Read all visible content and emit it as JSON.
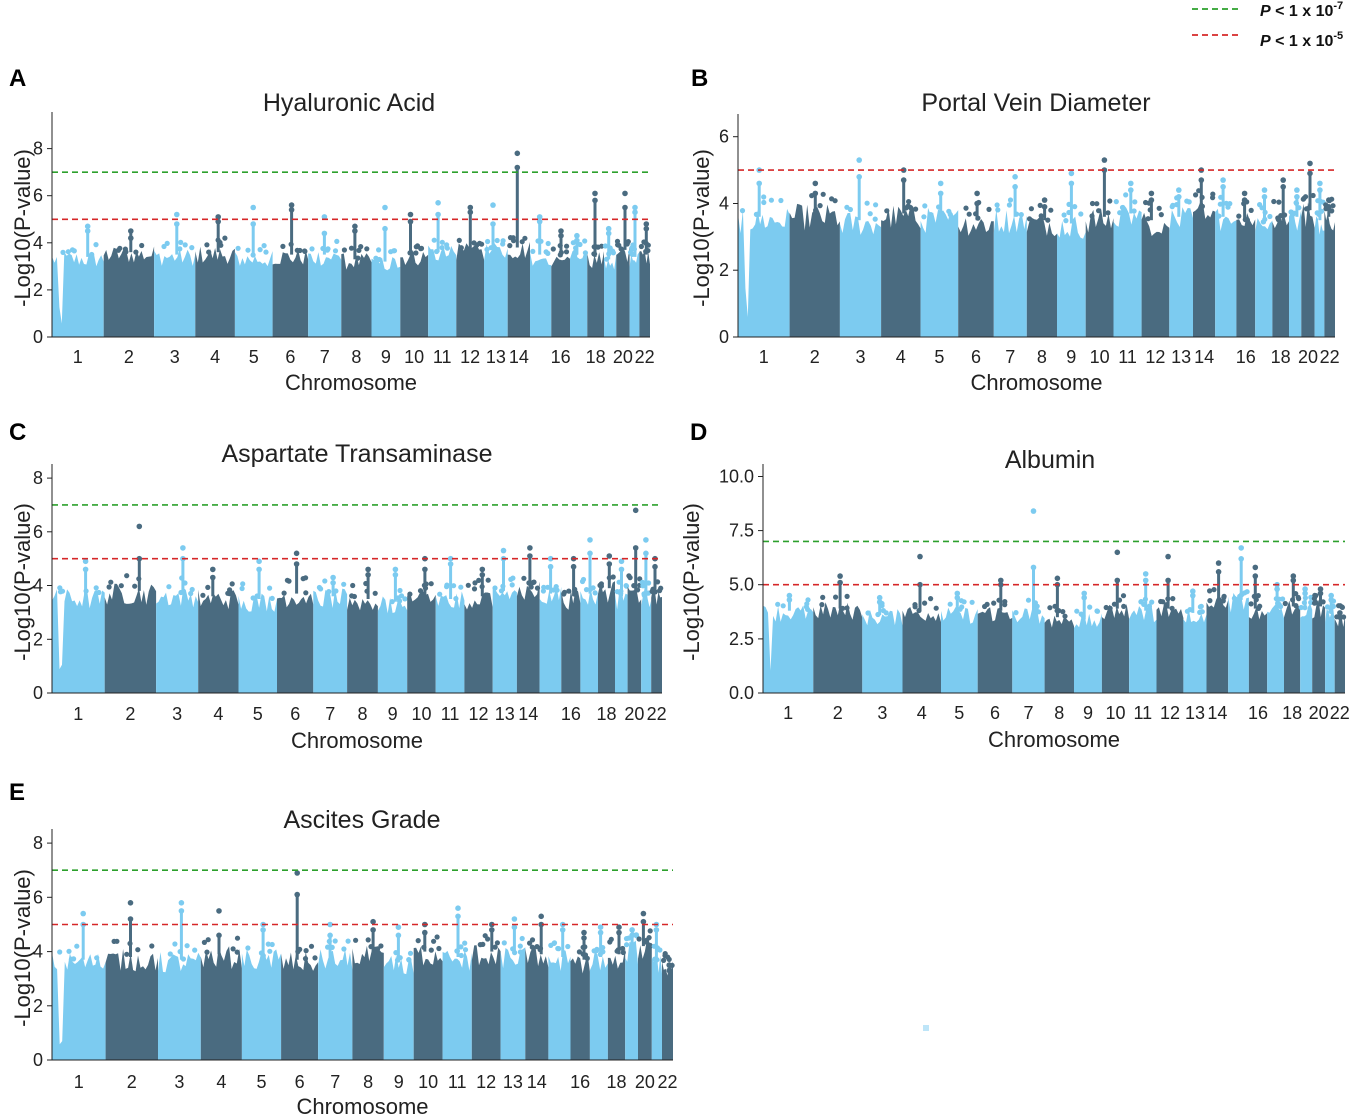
{
  "legend": {
    "entries": [
      {
        "label_prefix": "P",
        "label_text": " < 1 x 10",
        "exponent": "-7",
        "color": "#2ca02c",
        "threshold": 7
      },
      {
        "label_prefix": "P",
        "label_text": " < 1 x 10",
        "exponent": "-5",
        "color": "#d62728",
        "threshold": 5
      }
    ]
  },
  "colors": {
    "light": "#7ccbf0",
    "dark": "#4a6b80"
  },
  "chart_data": [
    {
      "panel": "A",
      "type": "scatter",
      "title": "Hyaluronic Acid",
      "xlabel": "Chromosome",
      "ylabel": "-Log10(P-value)",
      "ylim": [
        0,
        9.3
      ],
      "yticks": [
        "0",
        "2",
        "4",
        "6",
        "8"
      ],
      "ytick_values": [
        0,
        2,
        4,
        6,
        8
      ],
      "thresholds": [
        7,
        5
      ],
      "chromosomes": [
        "1",
        "2",
        "3",
        "4",
        "5",
        "6",
        "7",
        "8",
        "9",
        "10",
        "11",
        "12",
        "13",
        "14",
        "15",
        "16",
        "17",
        "18",
        "19",
        "20",
        "21",
        "22"
      ],
      "xtick_labels": [
        "1",
        "2",
        "3",
        "4",
        "5",
        "6",
        "7",
        "8",
        "9",
        "10",
        "11",
        "12",
        "13",
        "14",
        "",
        "16",
        "",
        "18",
        "",
        "20",
        "",
        "22"
      ],
      "baseline": [
        3.4,
        3.6,
        3.5,
        3.6,
        3.4,
        3.5,
        3.5,
        3.3,
        3.2,
        3.5,
        3.6,
        3.7,
        3.7,
        3.8,
        3.5,
        3.4,
        3.5,
        3.4,
        3.3,
        3.7,
        3.4,
        3.5
      ],
      "peaks": [
        [
          4.7,
          4.5
        ],
        [
          4.2,
          4.5
        ],
        [
          5.2,
          4.8
        ],
        [
          5.1,
          4.9
        ],
        [
          5.5,
          4.8
        ],
        [
          5.6,
          5.4
        ],
        [
          5.1,
          4.4
        ],
        [
          4.7,
          4.5
        ],
        [
          5.5,
          4.6
        ],
        [
          5.2,
          4.9
        ],
        [
          5.7,
          5.2
        ],
        [
          5.5,
          5.3
        ],
        [
          5.6,
          4.8
        ],
        [
          7.8,
          7.2
        ],
        [
          5.1,
          4.9
        ],
        [
          4.5,
          4.3
        ],
        [
          4.3,
          4.1
        ],
        [
          6.1,
          5.8
        ],
        [
          4.6,
          4.4
        ],
        [
          6.1,
          5.5
        ],
        [
          5.5,
          5.3
        ],
        [
          4.8,
          4.6
        ]
      ]
    },
    {
      "panel": "B",
      "type": "scatter",
      "title": "Portal Vein Diameter",
      "xlabel": "Chromosome",
      "ylabel": "-Log10(P-value)",
      "ylim": [
        0,
        6.5
      ],
      "yticks": [
        "0",
        "2",
        "4",
        "6"
      ],
      "ytick_values": [
        0,
        2,
        4,
        6
      ],
      "thresholds": [
        5
      ],
      "chromosomes": [
        "1",
        "2",
        "3",
        "4",
        "5",
        "6",
        "7",
        "8",
        "9",
        "10",
        "11",
        "12",
        "13",
        "14",
        "15",
        "16",
        "17",
        "18",
        "19",
        "20",
        "21",
        "22"
      ],
      "xtick_labels": [
        "1",
        "2",
        "3",
        "4",
        "5",
        "6",
        "7",
        "8",
        "9",
        "10",
        "11",
        "12",
        "13",
        "14",
        "",
        "16",
        "",
        "18",
        "",
        "20",
        "",
        "22"
      ],
      "baseline": [
        3.6,
        3.7,
        3.5,
        3.7,
        3.6,
        3.5,
        3.6,
        3.5,
        3.4,
        3.6,
        3.7,
        3.5,
        3.6,
        3.8,
        3.6,
        3.5,
        3.4,
        3.5,
        3.6,
        3.8,
        3.5,
        3.6
      ],
      "peaks": [
        [
          5.0,
          4.6
        ],
        [
          4.6,
          4.3
        ],
        [
          5.3,
          4.8
        ],
        [
          5.0,
          4.7
        ],
        [
          4.6,
          4.3
        ],
        [
          4.3,
          4.0
        ],
        [
          4.8,
          4.5
        ],
        [
          4.1,
          3.9
        ],
        [
          4.9,
          4.6
        ],
        [
          5.3,
          5.0
        ],
        [
          4.6,
          4.4
        ],
        [
          4.3,
          4.1
        ],
        [
          4.4,
          4.2
        ],
        [
          5.0,
          4.7
        ],
        [
          4.7,
          4.5
        ],
        [
          4.3,
          4.1
        ],
        [
          4.4,
          4.2
        ],
        [
          4.7,
          4.5
        ],
        [
          4.4,
          4.2
        ],
        [
          5.2,
          4.9
        ],
        [
          4.6,
          4.4
        ],
        [
          4.1,
          3.9
        ]
      ]
    },
    {
      "panel": "C",
      "type": "scatter",
      "title": "Aspartate Transaminase",
      "xlabel": "Chromosome",
      "ylabel": "-Log10(P-value)",
      "ylim": [
        0,
        8.3
      ],
      "yticks": [
        "0",
        "2",
        "4",
        "6",
        "8"
      ],
      "ytick_values": [
        0,
        2,
        4,
        6,
        8
      ],
      "thresholds": [
        7,
        5
      ],
      "chromosomes": [
        "1",
        "2",
        "3",
        "4",
        "5",
        "6",
        "7",
        "8",
        "9",
        "10",
        "11",
        "12",
        "13",
        "14",
        "15",
        "16",
        "17",
        "18",
        "19",
        "20",
        "21",
        "22"
      ],
      "xtick_labels": [
        "1",
        "2",
        "3",
        "4",
        "5",
        "6",
        "7",
        "8",
        "9",
        "10",
        "11",
        "12",
        "13",
        "14",
        "",
        "16",
        "",
        "18",
        "",
        "20",
        "",
        "22"
      ],
      "baseline": [
        3.6,
        3.8,
        3.7,
        3.6,
        3.5,
        3.7,
        3.6,
        3.5,
        3.4,
        3.6,
        3.5,
        3.6,
        3.8,
        3.9,
        3.7,
        3.6,
        3.7,
        3.9,
        3.6,
        3.8,
        3.6,
        3.7
      ],
      "peaks": [
        [
          4.9,
          4.6
        ],
        [
          6.2,
          5.0
        ],
        [
          5.4,
          5.0
        ],
        [
          4.6,
          4.3
        ],
        [
          4.9,
          4.6
        ],
        [
          5.2,
          4.8
        ],
        [
          4.3,
          4.1
        ],
        [
          4.6,
          4.4
        ],
        [
          4.6,
          4.4
        ],
        [
          5.0,
          4.6
        ],
        [
          5.0,
          4.8
        ],
        [
          4.6,
          4.4
        ],
        [
          5.3,
          5.0
        ],
        [
          5.4,
          5.1
        ],
        [
          5.0,
          4.7
        ],
        [
          5.0,
          4.7
        ],
        [
          5.7,
          5.2
        ],
        [
          5.1,
          4.8
        ],
        [
          4.9,
          4.6
        ],
        [
          6.8,
          5.4
        ],
        [
          5.7,
          5.2
        ],
        [
          5.0,
          4.7
        ]
      ]
    },
    {
      "panel": "D",
      "type": "scatter",
      "title": "Albumin",
      "xlabel": "Chromosome",
      "ylabel": "-Log10(P-value)",
      "ylim": [
        0,
        10.3
      ],
      "yticks": [
        "0.0",
        "2.5",
        "5.0",
        "7.5",
        "10.0"
      ],
      "ytick_values": [
        0,
        2.5,
        5,
        7.5,
        10
      ],
      "thresholds": [
        7,
        5
      ],
      "chromosomes": [
        "1",
        "2",
        "3",
        "4",
        "5",
        "6",
        "7",
        "8",
        "9",
        "10",
        "11",
        "12",
        "13",
        "14",
        "15",
        "16",
        "17",
        "18",
        "19",
        "20",
        "21",
        "22"
      ],
      "xtick_labels": [
        "1",
        "2",
        "3",
        "4",
        "5",
        "6",
        "7",
        "8",
        "9",
        "10",
        "11",
        "12",
        "13",
        "14",
        "",
        "16",
        "",
        "18",
        "",
        "20",
        "",
        "22"
      ],
      "baseline": [
        3.8,
        3.9,
        3.6,
        3.8,
        3.7,
        3.8,
        3.7,
        3.5,
        3.4,
        3.9,
        3.8,
        3.9,
        3.7,
        4.2,
        4.3,
        3.9,
        3.9,
        4.0,
        3.9,
        4.0,
        3.7,
        3.5
      ],
      "peaks": [
        [
          4.5,
          4.3
        ],
        [
          5.4,
          5.1
        ],
        [
          4.4,
          4.2
        ],
        [
          6.3,
          5.0
        ],
        [
          4.6,
          4.4
        ],
        [
          5.2,
          5.0
        ],
        [
          8.4,
          5.8
        ],
        [
          5.3,
          5.0
        ],
        [
          4.6,
          4.4
        ],
        [
          6.5,
          5.2
        ],
        [
          5.5,
          5.2
        ],
        [
          6.3,
          5.2
        ],
        [
          4.7,
          4.5
        ],
        [
          6.0,
          5.6
        ],
        [
          6.7,
          6.2
        ],
        [
          5.8,
          5.4
        ],
        [
          5.0,
          4.8
        ],
        [
          5.4,
          5.2
        ],
        [
          4.8,
          4.6
        ],
        [
          4.8,
          4.6
        ],
        [
          4.5,
          4.3
        ],
        [
          3.7,
          3.5
        ]
      ]
    },
    {
      "panel": "E",
      "type": "scatter",
      "title": "Ascites Grade",
      "xlabel": "Chromosome",
      "ylabel": "-Log10(P-value)",
      "ylim": [
        0,
        8.3
      ],
      "yticks": [
        "0",
        "2",
        "4",
        "6",
        "8"
      ],
      "ytick_values": [
        0,
        2,
        4,
        6,
        8
      ],
      "thresholds": [
        7,
        5
      ],
      "chromosomes": [
        "1",
        "2",
        "3",
        "4",
        "5",
        "6",
        "7",
        "8",
        "9",
        "10",
        "11",
        "12",
        "13",
        "14",
        "15",
        "16",
        "17",
        "18",
        "19",
        "20",
        "21",
        "22"
      ],
      "xtick_labels": [
        "1",
        "2",
        "3",
        "4",
        "5",
        "6",
        "7",
        "8",
        "9",
        "10",
        "11",
        "12",
        "13",
        "14",
        "",
        "16",
        "",
        "18",
        "",
        "20",
        "",
        "22"
      ],
      "baseline": [
        3.7,
        3.8,
        3.7,
        3.9,
        3.8,
        3.7,
        3.8,
        3.9,
        3.6,
        4.0,
        3.8,
        4.0,
        3.9,
        3.9,
        3.8,
        3.7,
        3.8,
        3.9,
        4.1,
        4.2,
        3.6,
        3.4
      ],
      "peaks": [
        [
          5.4,
          5.0
        ],
        [
          5.8,
          5.2
        ],
        [
          5.8,
          5.5
        ],
        [
          5.5,
          4.6
        ],
        [
          5.0,
          4.8
        ],
        [
          6.9,
          6.1
        ],
        [
          5.0,
          4.6
        ],
        [
          5.1,
          4.8
        ],
        [
          4.9,
          4.6
        ],
        [
          5.0,
          4.7
        ],
        [
          5.6,
          5.3
        ],
        [
          5.0,
          4.8
        ],
        [
          5.2,
          4.9
        ],
        [
          5.3,
          5.0
        ],
        [
          5.0,
          4.8
        ],
        [
          4.7,
          4.5
        ],
        [
          4.9,
          4.7
        ],
        [
          4.9,
          4.7
        ],
        [
          4.8,
          4.6
        ],
        [
          5.4,
          5.1
        ],
        [
          5.0,
          4.8
        ],
        [
          3.5,
          3.3
        ]
      ]
    }
  ]
}
